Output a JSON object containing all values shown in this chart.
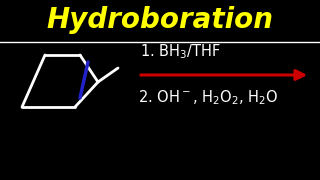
{
  "background_color": "#000000",
  "title": "Hydroboration",
  "title_color": "#ffff00",
  "title_fontsize": 20,
  "separator_color": "#ffffff",
  "line1_text": "1. BH$_3$/THF",
  "line2_text": "2. OH$^-$, H$_2$O$_2$, H$_2$O",
  "reaction_text_color": "#ffffff",
  "reaction_fontsize": 10.5,
  "arrow_color": "#cc0000",
  "pentagon_color": "#ffffff",
  "blue_bond_color": "#2222cc",
  "figsize": [
    3.2,
    1.8
  ],
  "dpi": 100
}
